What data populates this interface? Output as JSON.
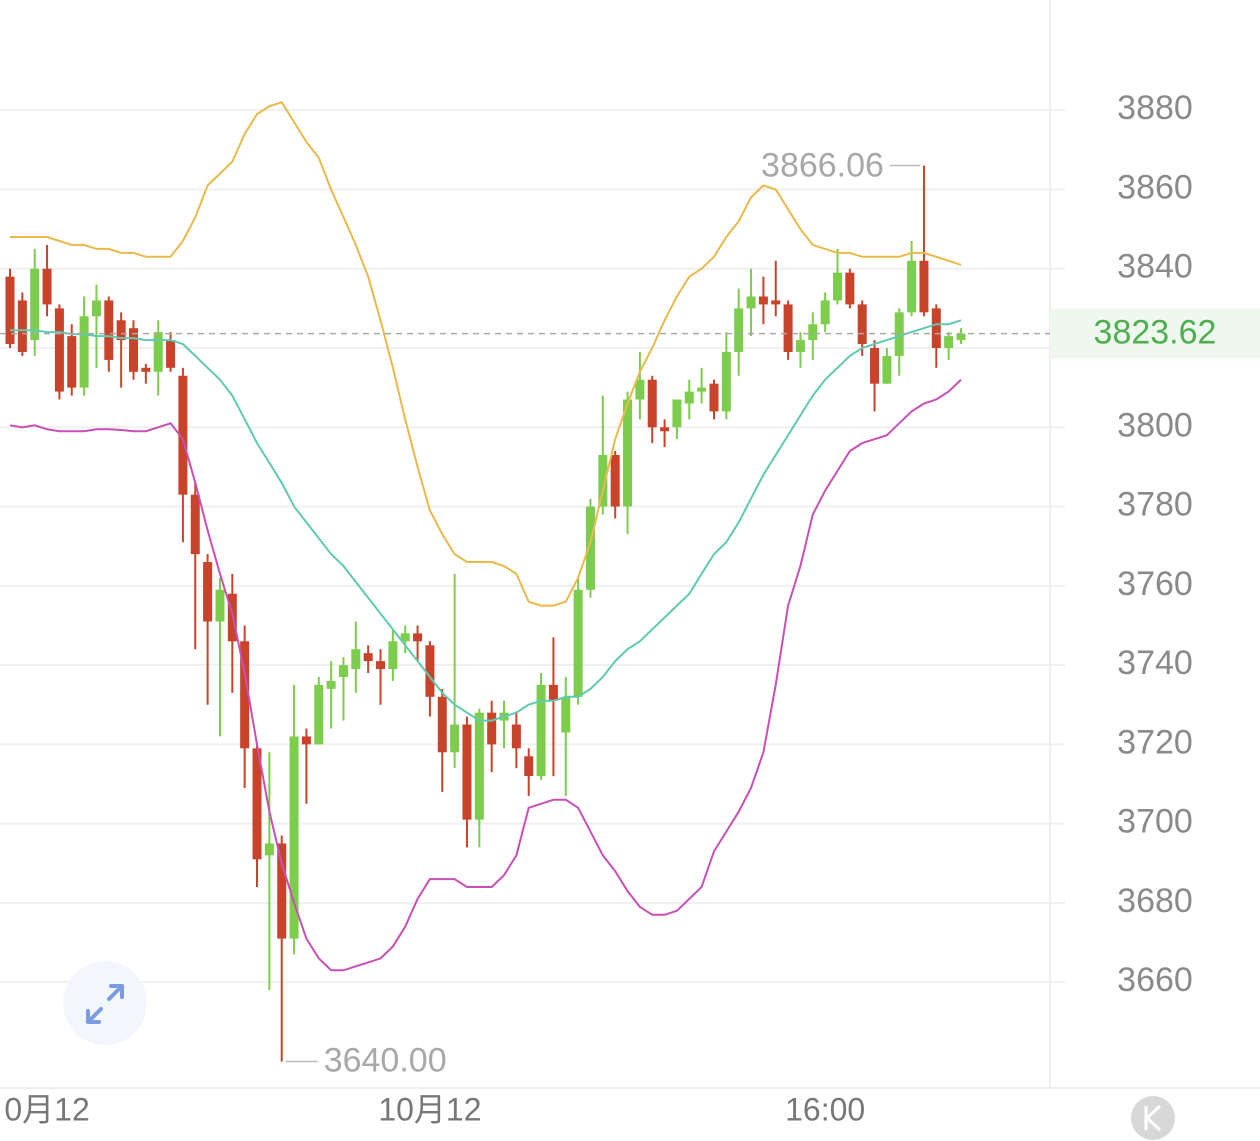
{
  "chart_data": {
    "type": "candlestick",
    "categories": [
      null,
      null,
      null,
      "0月12",
      null,
      null,
      null,
      null,
      null,
      null,
      null,
      null,
      null,
      null,
      null,
      null,
      null,
      null,
      null,
      null,
      null,
      null,
      null,
      null,
      null,
      null,
      null,
      null,
      null,
      null,
      null,
      null,
      null,
      null,
      "10月12",
      null,
      null,
      null,
      null,
      null,
      null,
      null,
      null,
      null,
      null,
      null,
      null,
      null,
      null,
      null,
      null,
      null,
      null,
      null,
      null,
      null,
      null,
      null,
      null,
      null,
      null,
      null,
      null,
      null,
      null,
      null,
      "16:00",
      null,
      null,
      null,
      null,
      null,
      null,
      null,
      null,
      null,
      null,
      null
    ],
    "open": [
      3838,
      3832,
      3822,
      3840,
      3830,
      3823,
      3810,
      3828,
      3832,
      3827,
      3825,
      3815,
      3814,
      3822,
      3813,
      3783,
      3766,
      3751,
      3758,
      3746,
      3719,
      3692,
      3695,
      3671,
      3722,
      3720,
      3734,
      3737,
      3739,
      3743,
      3741,
      3739,
      3746,
      3748,
      3745,
      3732,
      3718,
      3725,
      3701,
      3728,
      3726,
      3725,
      3717,
      3712,
      3735,
      3723,
      3732,
      3759,
      3780,
      3793,
      3780,
      3807,
      3812,
      3800,
      3800,
      3806,
      3809,
      3811,
      3804,
      3819,
      3830,
      3833,
      3832,
      3831,
      3819,
      3822,
      3826,
      3832,
      3839,
      3831,
      3820,
      3811,
      3818,
      3829,
      3842,
      3830,
      3820,
      3822
    ],
    "high": [
      3840,
      3834,
      3845,
      3846,
      3831,
      3826,
      3833,
      3836,
      3833,
      3829,
      3827,
      3816,
      3827,
      3824,
      3815,
      3786,
      3768,
      3762,
      3763,
      3750,
      3720,
      3718,
      3697,
      3735,
      3724,
      3737,
      3741,
      3742,
      3751,
      3745,
      3744,
      3749,
      3750,
      3750,
      3746,
      3734,
      3763,
      3727,
      3729,
      3731,
      3731,
      3728,
      3719,
      3738,
      3747,
      3737,
      3762,
      3782,
      3808,
      3794,
      3809,
      3819,
      3813,
      3802,
      3807,
      3812,
      3815,
      3812,
      3824,
      3835,
      3840,
      3838,
      3842,
      3832,
      3824,
      3829,
      3834,
      3845,
      3840,
      3832,
      3822,
      3820,
      3830,
      3847,
      3866.06,
      3831,
      3824,
      3825
    ],
    "low": [
      3820,
      3818,
      3818,
      3828,
      3807,
      3808,
      3808,
      3815,
      3814,
      3810,
      3812,
      3811,
      3808,
      3814,
      3771,
      3744,
      3730,
      3722,
      3733,
      3709,
      3684,
      3658,
      3640,
      3667,
      3705,
      3720,
      3724,
      3726,
      3733,
      3738,
      3730,
      3736,
      3743,
      3741,
      3727,
      3708,
      3714,
      3694,
      3694,
      3713,
      3719,
      3714,
      3707,
      3711,
      3712,
      3707,
      3730,
      3757,
      3778,
      3777,
      3773,
      3802,
      3796,
      3795,
      3797,
      3802,
      3806,
      3802,
      3802,
      3813,
      3823,
      3826,
      3828,
      3817,
      3815,
      3817,
      3824,
      3831,
      3830,
      3818,
      3804,
      3811,
      3813,
      3828,
      3828,
      3815,
      3817,
      3821
    ],
    "close": [
      3821,
      3819,
      3840,
      3831,
      3809,
      3810,
      3828,
      3832,
      3817,
      3822,
      3814,
      3814,
      3824,
      3815,
      3783,
      3768,
      3751,
      3759,
      3746,
      3719,
      3691,
      3695,
      3671,
      3722,
      3720,
      3735,
      3736,
      3740,
      3744,
      3741,
      3739,
      3746,
      3748,
      3746,
      3732,
      3718,
      3725,
      3701,
      3728,
      3720,
      3728,
      3719,
      3712,
      3735,
      3731,
      3732,
      3759,
      3780,
      3793,
      3780,
      3807,
      3812,
      3800,
      3799,
      3807,
      3809,
      3810,
      3804,
      3819,
      3830,
      3833,
      3831,
      3831,
      3819,
      3822,
      3826,
      3832,
      3839,
      3831,
      3821,
      3811,
      3818,
      3829,
      3842,
      3829,
      3820,
      3823,
      3823.62
    ],
    "up_color": "#7ccd4c",
    "down_color": "#c8432a",
    "lines": [
      {
        "color": "#e9b949",
        "values": [
          3848,
          3848,
          3848,
          3848,
          3847,
          3846,
          3846,
          3845,
          3845,
          3844,
          3844,
          3843,
          3843,
          3843,
          3847,
          3853,
          3861,
          3864,
          3867,
          3874,
          3879,
          3881,
          3882,
          3877,
          3872,
          3868,
          3860,
          3853,
          3846,
          3838,
          3827,
          3815,
          3802,
          3790,
          3779,
          3773,
          3768,
          3766,
          3766,
          3766,
          3765,
          3763,
          3756,
          3755,
          3755,
          3756,
          3762,
          3771,
          3784,
          3797,
          3806,
          3814,
          3820,
          3827,
          3833,
          3838,
          3840,
          3843,
          3848,
          3852,
          3858,
          3861,
          3860,
          3855,
          3850,
          3846,
          3845,
          3844,
          3844,
          3843,
          3843,
          3843,
          3843,
          3844,
          3844,
          3843,
          3842,
          3841
        ]
      },
      {
        "color": "#5fcab2",
        "values": [
          3824.5,
          3824.5,
          3824.5,
          3824,
          3824,
          3823.5,
          3823.5,
          3823,
          3823,
          3822.5,
          3822.5,
          3822,
          3822,
          3822,
          3821,
          3818,
          3815,
          3812,
          3808,
          3802,
          3796,
          3791,
          3786,
          3780,
          3776,
          3772,
          3768,
          3765,
          3761,
          3757,
          3753,
          3749,
          3745,
          3741,
          3737,
          3733,
          3730,
          3728,
          3726,
          3726,
          3727,
          3728,
          3730,
          3731,
          3731,
          3732,
          3732,
          3734,
          3737,
          3741,
          3744,
          3746,
          3749,
          3752,
          3755,
          3758,
          3763,
          3768,
          3771,
          3776,
          3782,
          3788,
          3793,
          3798,
          3803,
          3808,
          3812,
          3815,
          3818,
          3820,
          3821,
          3822,
          3823,
          3824,
          3825,
          3826,
          3826,
          3827
        ]
      },
      {
        "color": "#c94fb6",
        "values": [
          3800.5,
          3800,
          3800.5,
          3799.5,
          3799,
          3799,
          3799,
          3799.5,
          3799.5,
          3799.3,
          3799,
          3799,
          3800,
          3801,
          3797,
          3786,
          3774,
          3763,
          3753,
          3738,
          3720,
          3703,
          3690,
          3680,
          3671,
          3666,
          3663,
          3663,
          3664,
          3665,
          3666,
          3669,
          3674,
          3681,
          3686,
          3686,
          3686,
          3684,
          3684,
          3684,
          3687,
          3692,
          3704,
          3705,
          3706,
          3706,
          3704,
          3698,
          3692,
          3688,
          3683,
          3679,
          3677,
          3677,
          3678,
          3681,
          3684,
          3693,
          3698,
          3703,
          3709,
          3718,
          3735,
          3755,
          3765,
          3778,
          3784,
          3789,
          3794,
          3796,
          3797,
          3798,
          3801,
          3804,
          3806,
          3807,
          3809,
          3812
        ]
      }
    ],
    "low_label": "3640.00",
    "ylim": [
      3633.3,
      3907.8
    ],
    "yticks": [
      3660,
      3680,
      3700,
      3720,
      3740,
      3760,
      3780,
      3800,
      3820,
      3840,
      3860,
      3880
    ],
    "grid": true
  }
}
